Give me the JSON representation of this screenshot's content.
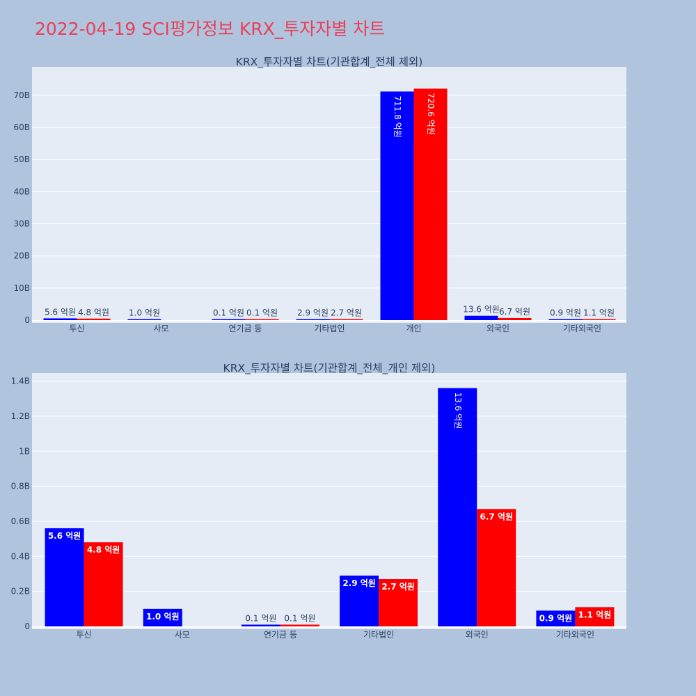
{
  "page_title": "2022-04-19 SCI평가정보 KRX_투자자별 차트",
  "colors": {
    "series_a": "#0000ff",
    "series_b": "#ff0000",
    "plot_bg": "#e5ecf6",
    "page_bg": "#b0c4de",
    "title": "#e8415a"
  },
  "chart_data": [
    {
      "type": "bar",
      "title": "KRX_투자자별 차트(기관합계_전체 제외)",
      "categories": [
        "투신",
        "사모",
        "연기금 등",
        "기타법인",
        "개인",
        "외국인",
        "기타외국인"
      ],
      "ylim": [
        0,
        78000000000
      ],
      "y_ticks": [
        0,
        10000000000,
        20000000000,
        30000000000,
        40000000000,
        50000000000,
        60000000000,
        70000000000
      ],
      "y_tick_labels": [
        "0",
        "10B",
        "20B",
        "30B",
        "40B",
        "50B",
        "60B",
        "70B"
      ],
      "grid": true,
      "series": [
        {
          "color": "#0000ff",
          "values": [
            560000000,
            100000000,
            10000000,
            290000000,
            71180000000,
            1360000000,
            90000000
          ],
          "labels": [
            "5.6 억원",
            "1.0 억원",
            "0.1 억원",
            "2.9 억원",
            "711.8 억원",
            "13.6 억원",
            "0.9 억원"
          ]
        },
        {
          "color": "#ff0000",
          "values": [
            480000000,
            0,
            10000000,
            270000000,
            72060000000,
            670000000,
            110000000
          ],
          "labels": [
            "4.8 억원",
            "",
            "0.1 억원",
            "2.7 억원",
            "720.6 억원",
            "6.7 억원",
            "1.1 억원"
          ]
        }
      ]
    },
    {
      "type": "bar",
      "title": "KRX_투자자별 차트(기관합계_전체_개인 제외)",
      "categories": [
        "투신",
        "사모",
        "연기금 등",
        "기타법인",
        "외국인",
        "기타외국인"
      ],
      "ylim": [
        0,
        1430000000
      ],
      "y_ticks": [
        0,
        200000000,
        400000000,
        600000000,
        800000000,
        1000000000,
        1200000000,
        1400000000
      ],
      "y_tick_labels": [
        "0",
        "0.2B",
        "0.4B",
        "0.6B",
        "0.8B",
        "1B",
        "1.2B",
        "1.4B"
      ],
      "grid": true,
      "series": [
        {
          "color": "#0000ff",
          "values": [
            560000000,
            100000000,
            10000000,
            290000000,
            1360000000,
            90000000
          ],
          "labels": [
            "5.6 억원",
            "1.0 억원",
            "0.1 억원",
            "2.9 억원",
            "13.6 억원",
            "0.9 억원"
          ]
        },
        {
          "color": "#ff0000",
          "values": [
            480000000,
            0,
            10000000,
            270000000,
            670000000,
            110000000
          ],
          "labels": [
            "4.8 억원",
            "",
            "0.1 억원",
            "2.7 억원",
            "6.7 억원",
            "1.1 억원"
          ]
        }
      ]
    }
  ]
}
